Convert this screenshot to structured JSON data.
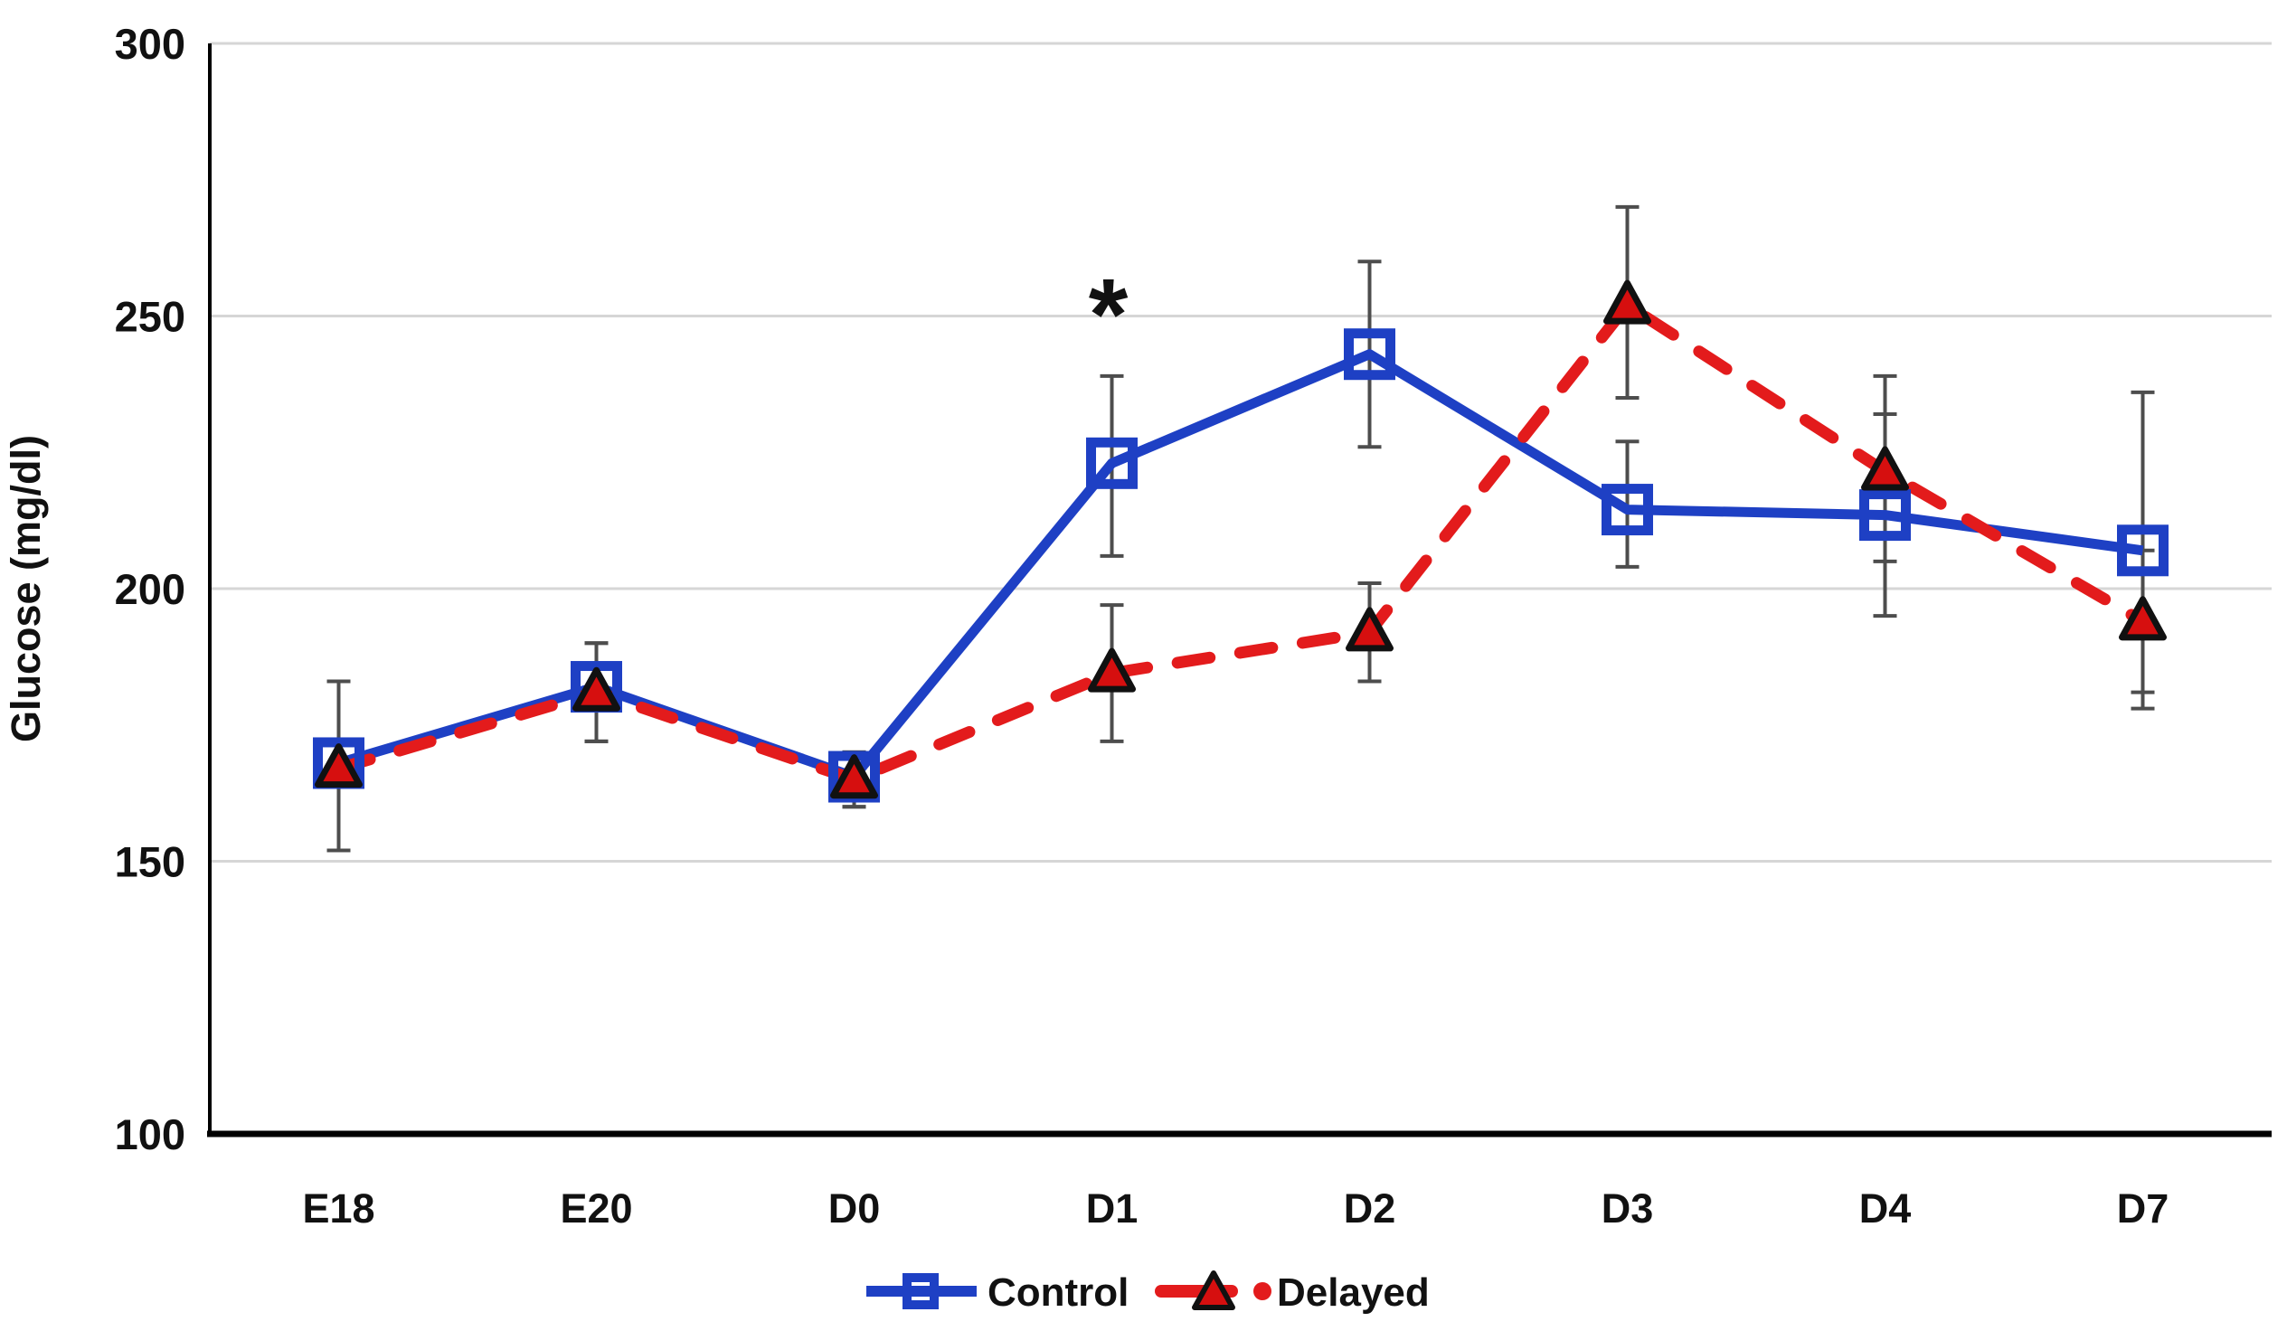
{
  "chart_data": {
    "type": "line",
    "title": "",
    "xlabel": "",
    "ylabel": "Glucose (mg/dl)",
    "ylim": [
      100,
      300
    ],
    "yticks": [
      100,
      150,
      200,
      250,
      300
    ],
    "categories": [
      "E18",
      "E20",
      "D0",
      "D1",
      "D2",
      "D3",
      "D4",
      "D7"
    ],
    "grid": "horizontal-light-gray",
    "legend_position": "bottom-center",
    "colors": {
      "control_blue": "#1E40C4",
      "delayed_red": "#E31B1C",
      "triangle_fill": "#D60F0F",
      "triangle_edge": "#111111",
      "grid_line": "#D6D6D6",
      "error_bar": "#4D4D4D",
      "axis_line": "#000000",
      "text": "#111111"
    },
    "series": [
      {
        "name": "Control",
        "line_style": "solid",
        "marker": "open-square",
        "color": "#1E40C4",
        "values": [
          168,
          182,
          165.5,
          223,
          243,
          214.5,
          213.5,
          207
        ],
        "error_low": [
          152,
          172,
          160,
          206,
          226,
          204,
          195,
          178
        ],
        "error_high": [
          183,
          190,
          170,
          239,
          260,
          227,
          232,
          236
        ]
      },
      {
        "name": "Delayed",
        "line_style": "dashed",
        "marker": "filled-triangle",
        "color": "#E31B1C",
        "values": [
          167,
          181,
          165,
          184.5,
          192,
          252,
          221.5,
          194
        ],
        "error_low": [
          152,
          172,
          160,
          172,
          183,
          235,
          205,
          181
        ],
        "error_high": [
          183,
          190,
          170,
          197,
          201,
          270,
          239,
          207
        ]
      }
    ],
    "annotations": [
      {
        "text": "*",
        "category": "D1",
        "value": 253.5,
        "x_offset": -4
      }
    ]
  }
}
